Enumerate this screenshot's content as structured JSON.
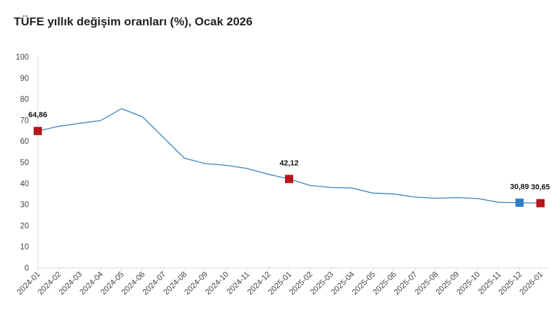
{
  "chart_data": {
    "type": "line",
    "title": "TÜFE yıllık değişim oranları (%), Ocak 2026",
    "xlabel": "",
    "ylabel": "",
    "ylim": [
      0,
      100
    ],
    "yticks": [
      0,
      10,
      20,
      30,
      40,
      50,
      60,
      70,
      80,
      90,
      100
    ],
    "grid": false,
    "categories": [
      "2024-01",
      "2024-02",
      "2024-03",
      "2024-04",
      "2024-05",
      "2024-06",
      "2024-07",
      "2024-08",
      "2024-09",
      "2024-10",
      "2024-11",
      "2024-12",
      "2025-01",
      "2025-02",
      "2025-03",
      "2025-04",
      "2025-05",
      "2025-06",
      "2025-07",
      "2025-08",
      "2025-09",
      "2025-10",
      "2025-11",
      "2025-12",
      "2026-01"
    ],
    "series": [
      {
        "name": "TÜFE",
        "color": "#3a7fb8",
        "values": [
          64.86,
          67.07,
          68.5,
          69.8,
          75.45,
          71.6,
          61.78,
          51.97,
          49.38,
          48.58,
          47.09,
          44.38,
          42.12,
          39.05,
          38.1,
          37.86,
          35.41,
          35.05,
          33.52,
          32.95,
          33.29,
          32.87,
          31.07,
          30.89,
          30.65
        ]
      }
    ],
    "annotations": [
      {
        "index": 0,
        "text": "64,86",
        "marker_color": "#b5161b"
      },
      {
        "index": 12,
        "text": "42,12",
        "marker_color": "#b5161b"
      },
      {
        "index": 23,
        "text": "30,89",
        "marker_color": "#2e7ec1"
      },
      {
        "index": 24,
        "text": "30,65",
        "marker_color": "#b5161b"
      }
    ]
  }
}
